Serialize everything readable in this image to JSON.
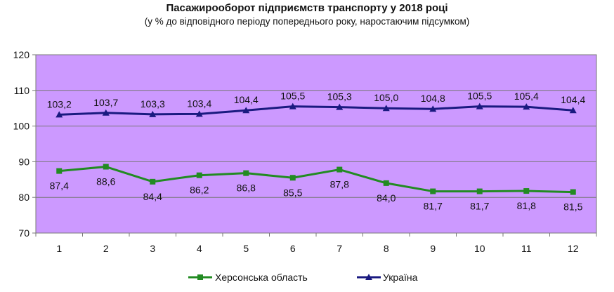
{
  "title": "Пасажирооборот підприємств транспорту у 2018 році",
  "subtitle": "(у % до відповідного періоду попереднього року, наростаючим підсумком)",
  "chart_data": {
    "type": "line",
    "title": "Пасажирооборот підприємств транспорту у 2018 році",
    "subtitle": "(у % до відповідного періоду попереднього року, наростаючим підсумком)",
    "x": [
      "1",
      "2",
      "3",
      "4",
      "5",
      "6",
      "7",
      "8",
      "9",
      "10",
      "11",
      "12"
    ],
    "ylim": [
      70,
      120
    ],
    "yticks": [
      70,
      80,
      90,
      100,
      110,
      120
    ],
    "grid": true,
    "legend_position": "bottom",
    "plot_background": "#CC99FF",
    "series": [
      {
        "name": "Херсонська область",
        "color": "#228B22",
        "marker": "square",
        "values": [
          87.4,
          88.6,
          84.4,
          86.2,
          86.8,
          85.5,
          87.8,
          84.0,
          81.7,
          81.7,
          81.8,
          81.5
        ],
        "labels": [
          "87,4",
          "88,6",
          "84,4",
          "86,2",
          "86,8",
          "85,5",
          "87,8",
          "84,0",
          "81,7",
          "81,7",
          "81,8",
          "81,5"
        ]
      },
      {
        "name": "Україна",
        "color": "#1A1A80",
        "marker": "triangle",
        "values": [
          103.2,
          103.7,
          103.3,
          103.4,
          104.4,
          105.5,
          105.3,
          105.0,
          104.8,
          105.5,
          105.4,
          104.4
        ],
        "labels": [
          "103,2",
          "103,7",
          "103,3",
          "103,4",
          "104,4",
          "105,5",
          "105,3",
          "105,0",
          "104,8",
          "105,5",
          "105,4",
          "104,4"
        ]
      }
    ]
  }
}
